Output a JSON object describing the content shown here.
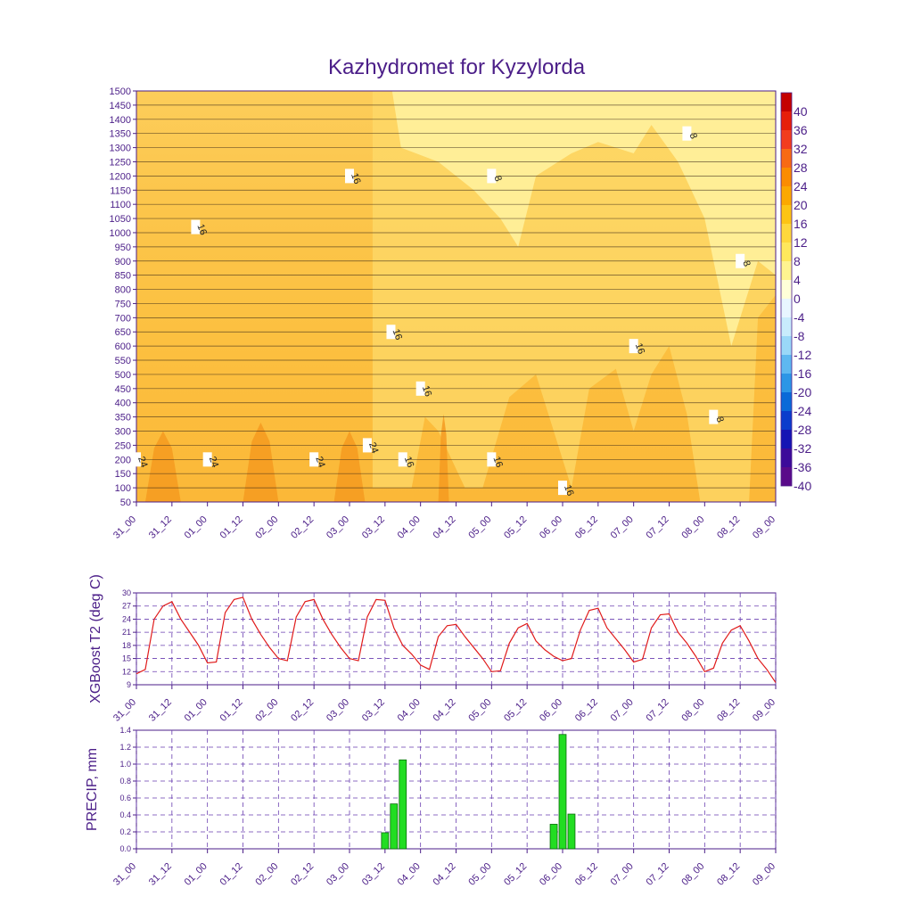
{
  "title": "Kazhydromet for Kyzylorda",
  "colors": {
    "axis": "#4b1e88",
    "grid": "#6a3fb0",
    "t2_line": "#e01b1b",
    "precip_fill": "#22dd22",
    "precip_stroke": "#0a6a0a"
  },
  "chart_data": [
    {
      "type": "heatmap",
      "title": "Kazhydromet for Kyzylorda",
      "x_ticks": [
        "31_00",
        "31_12",
        "01_00",
        "01_12",
        "02_00",
        "02_12",
        "03_00",
        "03_12",
        "04_00",
        "04_12",
        "05_00",
        "05_12",
        "06_00",
        "06_12",
        "07_00",
        "07_12",
        "08_00",
        "08_12",
        "09_00"
      ],
      "y_ticks": [
        50,
        100,
        150,
        200,
        250,
        300,
        350,
        400,
        450,
        500,
        550,
        600,
        650,
        700,
        750,
        800,
        850,
        900,
        950,
        1000,
        1050,
        1100,
        1150,
        1200,
        1250,
        1300,
        1350,
        1400,
        1450,
        1500
      ],
      "ylim": [
        50,
        1500
      ],
      "contour_labels": [
        {
          "text": "16",
          "x": "31_20",
          "y": 1020
        },
        {
          "text": "16",
          "x": "03_00",
          "y": 1200
        },
        {
          "text": "8",
          "x": "05_00",
          "y": 1200
        },
        {
          "text": "8",
          "x": "07_18",
          "y": 1350
        },
        {
          "text": "8",
          "x": "08_12",
          "y": 900
        },
        {
          "text": "16",
          "x": "03_14",
          "y": 650
        },
        {
          "text": "16",
          "x": "07_00",
          "y": 600
        },
        {
          "text": "16",
          "x": "04_00",
          "y": 450
        },
        {
          "text": "8",
          "x": "08_03",
          "y": 350
        },
        {
          "text": "24",
          "x": "31_00",
          "y": 200
        },
        {
          "text": "24",
          "x": "01_00",
          "y": 200
        },
        {
          "text": "24",
          "x": "02_12",
          "y": 200
        },
        {
          "text": "24",
          "x": "03_06",
          "y": 250
        },
        {
          "text": "16",
          "x": "03_18",
          "y": 200
        },
        {
          "text": "16",
          "x": "05_00",
          "y": 200
        },
        {
          "text": "16",
          "x": "06_00",
          "y": 100
        }
      ],
      "colorbar": {
        "labels": [
          "40",
          "36",
          "32",
          "28",
          "24",
          "20",
          "16",
          "12",
          "8",
          "4",
          "0",
          "-4",
          "-8",
          "-12",
          "-16",
          "-20",
          "-24",
          "-28",
          "-32",
          "-36",
          "-40"
        ],
        "colors": [
          "#c40000",
          "#e61e0a",
          "#f23c1e",
          "#f86a14",
          "#fb8c00",
          "#fca800",
          "#fdc414",
          "#fed83c",
          "#fee85c",
          "#fff490",
          "#ffffd8",
          "#e8f6ff",
          "#c8ecfc",
          "#9ad8f8",
          "#5eb8f0",
          "#2c96e6",
          "#0a6ad8",
          "#0a3ccc",
          "#1414b4",
          "#3c0a9a",
          "#5a0a8a"
        ]
      }
    },
    {
      "type": "line",
      "ylabel": "XGBoost T2 (deg C)",
      "x_ticks": [
        "31_00",
        "31_12",
        "01_00",
        "01_12",
        "02_00",
        "02_12",
        "03_00",
        "03_12",
        "04_00",
        "04_12",
        "05_00",
        "05_12",
        "06_00",
        "06_12",
        "07_00",
        "07_12",
        "08_00",
        "08_12",
        "09_00"
      ],
      "ylim": [
        9,
        30
      ],
      "y_ticks": [
        9,
        12,
        15,
        18,
        21,
        24,
        27,
        30
      ],
      "series": [
        {
          "values": [
            11.5,
            12.5,
            24,
            27,
            28,
            24,
            21,
            18,
            14,
            14.2,
            25.5,
            28.5,
            29,
            24,
            20.5,
            17.5,
            15,
            14.5,
            24.5,
            28,
            28.5,
            24,
            20.5,
            17.5,
            15,
            14.5,
            24.5,
            28.5,
            28.3,
            22,
            18,
            16,
            13.5,
            12.5,
            20,
            22.5,
            22.8,
            20,
            17.5,
            15,
            12,
            12.2,
            18.5,
            22,
            23,
            19,
            17,
            15.5,
            14.5,
            15,
            21.5,
            26,
            26.5,
            22,
            19.5,
            17,
            14.2,
            14.8,
            22,
            25,
            25.2,
            21,
            18.5,
            15.5,
            12,
            12.8,
            18.5,
            21.5,
            22.5,
            19,
            15,
            12.5,
            9.5
          ]
        }
      ]
    },
    {
      "type": "bar",
      "ylabel": "PRECIP, mm",
      "x_ticks": [
        "31_00",
        "31_12",
        "01_00",
        "01_12",
        "02_00",
        "02_12",
        "03_00",
        "03_12",
        "04_00",
        "04_12",
        "05_00",
        "05_12",
        "06_00",
        "06_12",
        "07_00",
        "07_12",
        "08_00",
        "08_12",
        "09_00"
      ],
      "ylim": [
        0,
        1.4
      ],
      "y_ticks": [
        "0.0",
        "0.2",
        "0.4",
        "0.6",
        "0.8",
        "1.0",
        "1.2",
        "1.4"
      ],
      "bars": [
        {
          "x": "03_12",
          "value": 0.19
        },
        {
          "x": "03_15",
          "value": 0.53
        },
        {
          "x": "03_18",
          "value": 1.05
        },
        {
          "x": "05_21",
          "value": 0.29
        },
        {
          "x": "06_00",
          "value": 1.35
        },
        {
          "x": "06_03",
          "value": 0.41
        }
      ]
    }
  ]
}
